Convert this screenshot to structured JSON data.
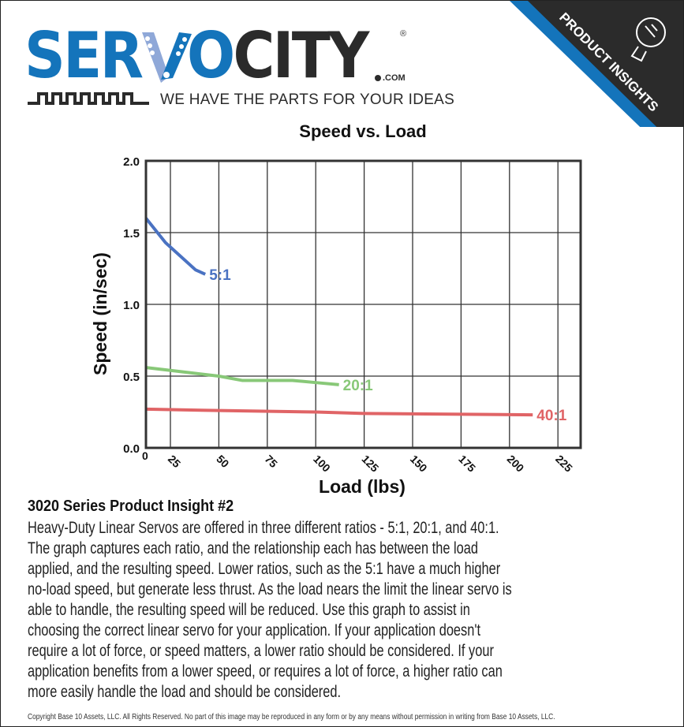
{
  "brand": {
    "logo_left": "SER",
    "logo_mid": "O",
    "logo_right": "CITY",
    "dotcom": ".COM",
    "registered": "®",
    "tagline": "WE HAVE THE PARTS FOR YOUR IDEAS",
    "corner_banner": "PRODUCT INSIGHTS",
    "colors": {
      "blue": "#1474bb",
      "dark": "#2b2b2b",
      "light_blue": "#8fa8d8"
    }
  },
  "chart_data": {
    "type": "line",
    "title": "Speed vs. Load",
    "xlabel": "Load (lbs)",
    "ylabel": "Speed (in/sec)",
    "x_ticks": [
      "0",
      "25",
      "50",
      "75",
      "100",
      "125",
      "150",
      "175",
      "200",
      "225"
    ],
    "y_ticks": [
      "0.0",
      "0.5",
      "1.0",
      "1.5",
      "2.0"
    ],
    "ylim": [
      0,
      2
    ],
    "grid": true,
    "series": [
      {
        "name": "5:1",
        "color": "#4a72c2",
        "points": [
          [
            0,
            1.6
          ],
          [
            20,
            1.43
          ],
          [
            38,
            1.24
          ],
          [
            43,
            1.21
          ]
        ]
      },
      {
        "name": "20:1",
        "color": "#88c878",
        "points": [
          [
            0,
            0.56
          ],
          [
            25,
            0.54
          ],
          [
            50,
            0.5
          ],
          [
            62,
            0.47
          ],
          [
            88,
            0.47
          ],
          [
            100,
            0.455
          ],
          [
            112,
            0.44
          ]
        ]
      },
      {
        "name": "40:1",
        "color": "#e06466",
        "points": [
          [
            0,
            0.27
          ],
          [
            50,
            0.26
          ],
          [
            100,
            0.25
          ],
          [
            125,
            0.24
          ],
          [
            212,
            0.23
          ]
        ]
      }
    ]
  },
  "insight": {
    "title": "3020 Series Product Insight #2",
    "lines": [
      "Heavy-Duty Linear Servos are offered in three different ratios - 5:1, 20:1, and 40:1.",
      "The graph captures each ratio, and the relationship each has between the load",
      "applied, and the resulting speed. Lower ratios, such as the 5:1 have a much higher",
      "no-load speed, but generate less thrust. As the load nears the limit the linear servo is",
      "able to handle, the resulting speed will be reduced. Use this graph to assist in",
      "choosing the correct linear servo for your application. If your application doesn't",
      "require a lot of force, or speed matters, a lower ratio should be considered. If your",
      "application benefits from a lower speed, or requires a lot of force, a higher ratio can",
      "more easily handle the load and should be considered."
    ]
  },
  "copyright": "Copyright Base 10 Assets, LLC. All Rights Reserved. No part of this image may be reproduced in any form or by any means without permission in writing from Base 10 Assets, LLC."
}
